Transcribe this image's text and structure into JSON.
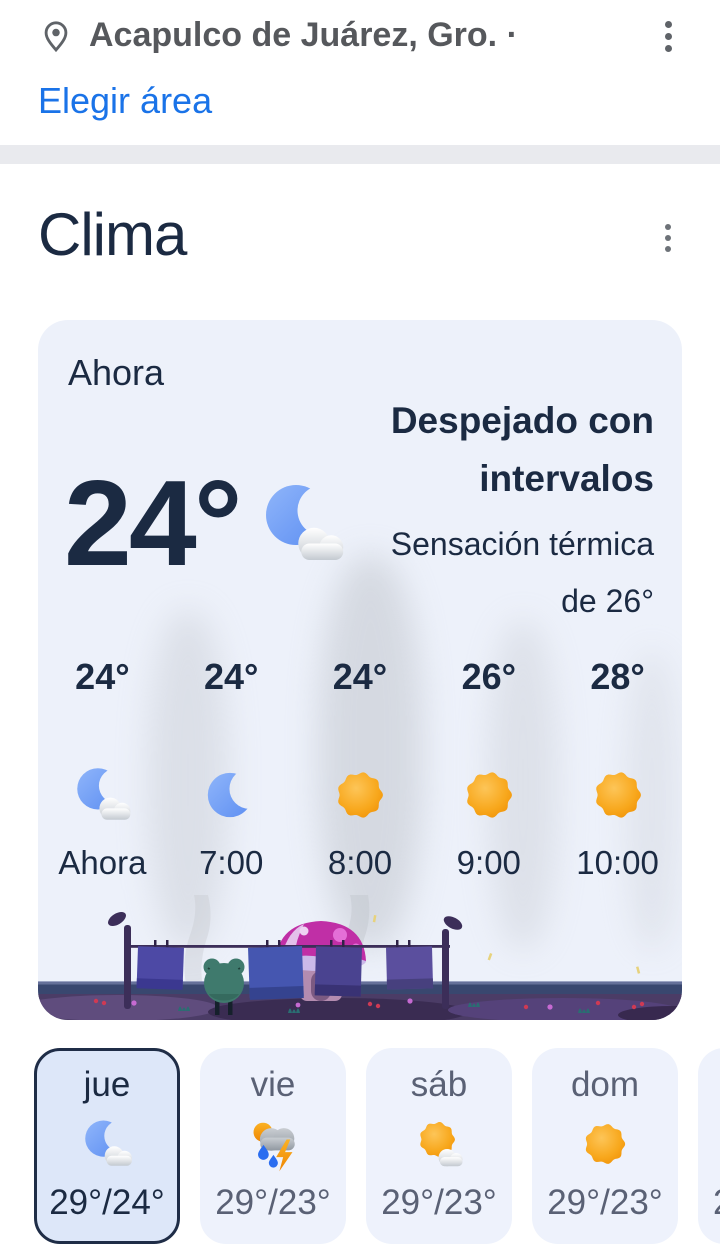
{
  "topbar": {
    "location": "Acapulco de Juárez, Gro. ·",
    "location_pin_icon": "location-pin-icon",
    "menu_icon": "kebab-menu-icon",
    "choose_area": "Elegir área"
  },
  "weather_section": {
    "title": "Clima",
    "menu_icon": "kebab-menu-icon"
  },
  "current": {
    "label": "Ahora",
    "temp": "24°",
    "icon": "moon-cloud",
    "condition_lines": [
      "Despejado con",
      "intervalos"
    ],
    "feels_like_lines": [
      "Sensación térmica",
      "de 26°"
    ]
  },
  "hourly": {
    "items": [
      {
        "temp": "24°",
        "icon": "moon-cloud",
        "time": "Ahora"
      },
      {
        "temp": "24°",
        "icon": "moon",
        "time": "7:00"
      },
      {
        "temp": "24°",
        "icon": "sun",
        "time": "8:00"
      },
      {
        "temp": "26°",
        "icon": "sun",
        "time": "9:00"
      },
      {
        "temp": "28°",
        "icon": "sun",
        "time": "10:00"
      }
    ]
  },
  "daily": {
    "items": [
      {
        "label": "jue",
        "icon": "moon-cloud",
        "temps": "29°/24°",
        "selected": true
      },
      {
        "label": "vie",
        "icon": "storm",
        "temps": "29°/23°",
        "selected": false
      },
      {
        "label": "sáb",
        "icon": "sun-cloud",
        "temps": "29°/23°",
        "selected": false
      },
      {
        "label": "dom",
        "icon": "sun",
        "temps": "29°/23°",
        "selected": false
      },
      {
        "label": "",
        "icon": "",
        "temps": "2",
        "selected": false
      }
    ]
  },
  "colors": {
    "accent_blue": "#1a73e8",
    "text_dark": "#1b2a42",
    "text_muted": "#5a6175",
    "card_bg": "#edf1fa",
    "day_card_bg": "#eef2fc",
    "day_card_selected_bg": "#dde7f9",
    "header_gray": "#56585c",
    "divider_gray": "#e9eaee"
  }
}
